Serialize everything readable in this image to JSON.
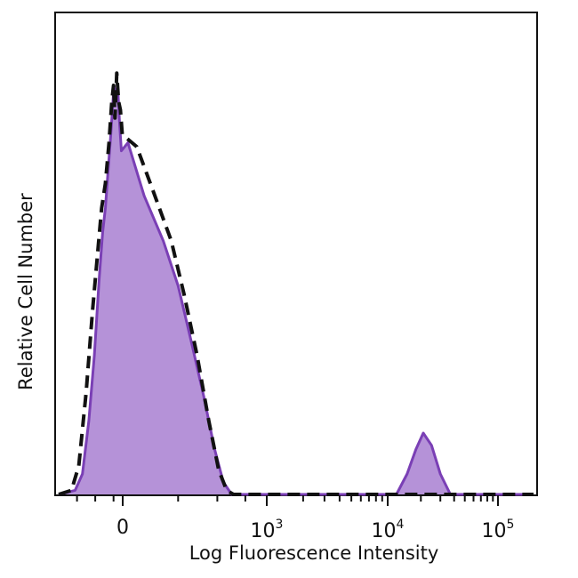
{
  "chart_data": {
    "type": "area",
    "title": "",
    "xlabel": "Log Fluorescence Intensity",
    "ylabel": "Relative Cell Number",
    "x_scale": "biexponential",
    "xlim": [
      -700,
      200000
    ],
    "ylim": [
      0,
      1
    ],
    "grid": false,
    "legend": "none",
    "tick_labels": [
      {
        "base": "0",
        "exp": "",
        "value": 0
      },
      {
        "base": "10",
        "exp": "3",
        "value": 1000
      },
      {
        "base": "10",
        "exp": "4",
        "value": 10000
      },
      {
        "base": "10",
        "exp": "5",
        "value": 100000
      }
    ],
    "series": [
      {
        "style": "filled-purple",
        "color": "#7a3fb5",
        "fill": "#b592d8",
        "points": [
          [
            -700,
            0.0
          ],
          [
            -520,
            0.01
          ],
          [
            -440,
            0.05
          ],
          [
            -370,
            0.18
          ],
          [
            -310,
            0.34
          ],
          [
            -260,
            0.52
          ],
          [
            -220,
            0.64
          ],
          [
            -190,
            0.7
          ],
          [
            -160,
            0.79
          ],
          [
            -130,
            0.88
          ],
          [
            -110,
            0.95
          ],
          [
            -95,
            1.0
          ],
          [
            -75,
            0.97
          ],
          [
            -55,
            1.0
          ],
          [
            -35,
            0.91
          ],
          [
            -15,
            0.84
          ],
          [
            5,
            0.86
          ],
          [
            25,
            0.73
          ],
          [
            60,
            0.62
          ],
          [
            100,
            0.51
          ],
          [
            150,
            0.37
          ],
          [
            210,
            0.24
          ],
          [
            280,
            0.11
          ],
          [
            350,
            0.03
          ],
          [
            430,
            0.0
          ],
          [
            1000,
            0.0
          ],
          [
            5000,
            0.0
          ],
          [
            12000,
            0.0
          ],
          [
            15000,
            0.05
          ],
          [
            18000,
            0.11
          ],
          [
            21000,
            0.15
          ],
          [
            25000,
            0.12
          ],
          [
            30000,
            0.05
          ],
          [
            37000,
            0.0
          ],
          [
            200000,
            0.0
          ]
        ]
      },
      {
        "style": "dashed-black",
        "color": "#111111",
        "fill": "none",
        "points": [
          [
            -700,
            0.0
          ],
          [
            -560,
            0.01
          ],
          [
            -480,
            0.07
          ],
          [
            -400,
            0.25
          ],
          [
            -330,
            0.45
          ],
          [
            -270,
            0.6
          ],
          [
            -230,
            0.7
          ],
          [
            -190,
            0.76
          ],
          [
            -150,
            0.86
          ],
          [
            -120,
            0.96
          ],
          [
            -100,
            1.0
          ],
          [
            -85,
            0.92
          ],
          [
            -65,
            1.03
          ],
          [
            -45,
            0.96
          ],
          [
            -25,
            0.94
          ],
          [
            -5,
            0.88
          ],
          [
            15,
            0.85
          ],
          [
            40,
            0.74
          ],
          [
            80,
            0.62
          ],
          [
            120,
            0.49
          ],
          [
            175,
            0.34
          ],
          [
            240,
            0.18
          ],
          [
            310,
            0.06
          ],
          [
            380,
            0.01
          ],
          [
            450,
            0.0
          ],
          [
            1000,
            0.0
          ],
          [
            200000,
            0.0
          ]
        ]
      }
    ]
  }
}
